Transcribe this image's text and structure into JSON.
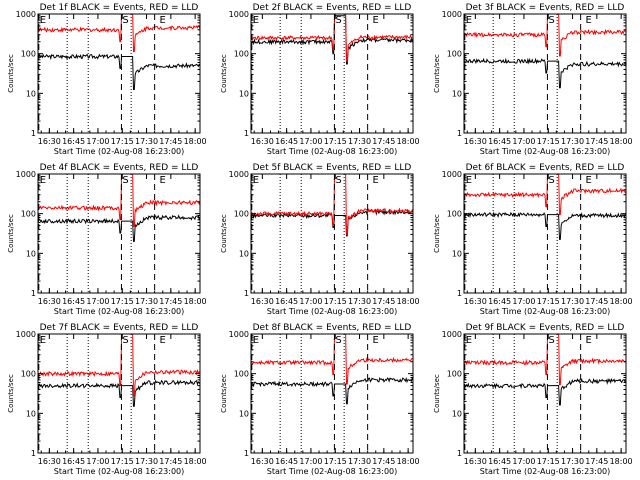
{
  "chart_data": [
    {
      "type": "line",
      "title": "Det 1f BLACK = Events, RED = LLD",
      "xlabel": "Start Time (02-Aug-08 16:23:00)",
      "ylabel": "Counts/sec",
      "yscale": "log",
      "ylim": [
        1,
        1000
      ],
      "xticks": [
        "16:30",
        "16:45",
        "17:00",
        "17:15",
        "17:30",
        "17:45",
        "18:00"
      ],
      "yticks": [
        "1",
        "10",
        "100",
        "1000"
      ],
      "markers": [
        "E",
        "S",
        "E"
      ],
      "series": [
        {
          "name": "Events",
          "color": "#000000",
          "base": [
            85,
            50
          ],
          "peak": 85
        },
        {
          "name": "LLD",
          "color": "#ff0000",
          "base": [
            400,
            450
          ],
          "peak": 1200
        }
      ]
    },
    {
      "type": "line",
      "title": "Det 2f BLACK = Events, RED = LLD",
      "xlabel": "Start Time (02-Aug-08 16:23:00)",
      "ylabel": "Counts/sec",
      "yscale": "log",
      "ylim": [
        1,
        1000
      ],
      "xticks": [
        "16:30",
        "16:45",
        "17:00",
        "17:15",
        "17:30",
        "17:45",
        "18:00"
      ],
      "yticks": [
        "1",
        "10",
        "100",
        "1000"
      ],
      "markers": [
        "E",
        "S",
        "E"
      ],
      "series": [
        {
          "name": "Events",
          "color": "#000000",
          "base": [
            200,
            220
          ],
          "peak": 900
        },
        {
          "name": "LLD",
          "color": "#ff0000",
          "base": [
            250,
            260
          ],
          "peak": 1100
        }
      ]
    },
    {
      "type": "line",
      "title": "Det 3f BLACK = Events, RED = LLD",
      "xlabel": "Start Time (02-Aug-08 16:23:00)",
      "ylabel": "Counts/sec",
      "yscale": "log",
      "ylim": [
        1,
        1000
      ],
      "xticks": [
        "16:30",
        "16:45",
        "17:00",
        "17:15",
        "17:30",
        "17:45",
        "18:00"
      ],
      "yticks": [
        "1",
        "10",
        "100",
        "1000"
      ],
      "markers": [
        "E",
        "S",
        "E"
      ],
      "series": [
        {
          "name": "Events",
          "color": "#000000",
          "base": [
            65,
            55
          ],
          "peak": 65
        },
        {
          "name": "LLD",
          "color": "#ff0000",
          "base": [
            300,
            350
          ],
          "peak": 1200
        }
      ]
    },
    {
      "type": "line",
      "title": "Det 4f BLACK = Events, RED = LLD",
      "xlabel": "Start Time (02-Aug-08 16:23:00)",
      "ylabel": "Counts/sec",
      "yscale": "log",
      "ylim": [
        1,
        1000
      ],
      "xticks": [
        "16:30",
        "16:45",
        "17:00",
        "17:15",
        "17:30",
        "17:45",
        "18:00"
      ],
      "yticks": [
        "1",
        "10",
        "100",
        "1000"
      ],
      "markers": [
        "E",
        "S",
        "E"
      ],
      "series": [
        {
          "name": "Events",
          "color": "#000000",
          "base": [
            65,
            80
          ],
          "peak": 65
        },
        {
          "name": "LLD",
          "color": "#ff0000",
          "base": [
            140,
            190
          ],
          "peak": 1200
        }
      ]
    },
    {
      "type": "line",
      "title": "Det 5f BLACK = Events, RED = LLD",
      "xlabel": "Start Time (02-Aug-08 16:23:00)",
      "ylabel": "Counts/sec",
      "yscale": "log",
      "ylim": [
        1,
        1000
      ],
      "xticks": [
        "16:30",
        "16:45",
        "17:00",
        "17:15",
        "17:30",
        "17:45",
        "18:00"
      ],
      "yticks": [
        "1",
        "10",
        "100",
        "1000"
      ],
      "markers": [
        "E",
        "S",
        "E"
      ],
      "series": [
        {
          "name": "Events",
          "color": "#000000",
          "base": [
            90,
            110
          ],
          "peak": 90
        },
        {
          "name": "LLD",
          "color": "#ff0000",
          "base": [
            100,
            120
          ],
          "peak": 1200
        }
      ]
    },
    {
      "type": "line",
      "title": "Det 6f BLACK = Events, RED = LLD",
      "xlabel": "Start Time (02-Aug-08 16:23:00)",
      "ylabel": "Counts/sec",
      "yscale": "log",
      "ylim": [
        1,
        1000
      ],
      "xticks": [
        "16:30",
        "16:45",
        "17:00",
        "17:15",
        "17:30",
        "17:45",
        "18:00"
      ],
      "yticks": [
        "1",
        "10",
        "100",
        "1000"
      ],
      "markers": [
        "E",
        "S",
        "E"
      ],
      "series": [
        {
          "name": "Events",
          "color": "#000000",
          "base": [
            95,
            90
          ],
          "peak": 95
        },
        {
          "name": "LLD",
          "color": "#ff0000",
          "base": [
            300,
            380
          ],
          "peak": 1200
        }
      ]
    },
    {
      "type": "line",
      "title": "Det 7f BLACK = Events, RED = LLD",
      "xlabel": "Start Time (02-Aug-08 16:23:00)",
      "ylabel": "Counts/sec",
      "yscale": "log",
      "ylim": [
        1,
        1000
      ],
      "xticks": [
        "16:30",
        "16:45",
        "17:00",
        "17:15",
        "17:30",
        "17:45",
        "18:00"
      ],
      "yticks": [
        "1",
        "10",
        "100",
        "1000"
      ],
      "markers": [
        "E",
        "S",
        "E"
      ],
      "series": [
        {
          "name": "Events",
          "color": "#000000",
          "base": [
            50,
            60
          ],
          "peak": 50
        },
        {
          "name": "LLD",
          "color": "#ff0000",
          "base": [
            100,
            110
          ],
          "peak": 1200
        }
      ]
    },
    {
      "type": "line",
      "title": "Det 8f BLACK = Events, RED = LLD",
      "xlabel": "Start Time (02-Aug-08 16:23:00)",
      "ylabel": "Counts/sec",
      "yscale": "log",
      "ylim": [
        1,
        1000
      ],
      "xticks": [
        "16:30",
        "16:45",
        "17:00",
        "17:15",
        "17:30",
        "17:45",
        "18:00"
      ],
      "yticks": [
        "1",
        "10",
        "100",
        "1000"
      ],
      "markers": [
        "E",
        "S",
        "E"
      ],
      "series": [
        {
          "name": "Events",
          "color": "#000000",
          "base": [
            55,
            70
          ],
          "peak": 55
        },
        {
          "name": "LLD",
          "color": "#ff0000",
          "base": [
            190,
            220
          ],
          "peak": 1200
        }
      ]
    },
    {
      "type": "line",
      "title": "Det 9f BLACK = Events, RED = LLD",
      "xlabel": "Start Time (02-Aug-08 16:23:00)",
      "ylabel": "Counts/sec",
      "yscale": "log",
      "ylim": [
        1,
        1000
      ],
      "xticks": [
        "16:30",
        "16:45",
        "17:00",
        "17:15",
        "17:30",
        "17:45",
        "18:00"
      ],
      "yticks": [
        "1",
        "10",
        "100",
        "1000"
      ],
      "markers": [
        "E",
        "S",
        "E"
      ],
      "series": [
        {
          "name": "Events",
          "color": "#000000",
          "base": [
            50,
            65
          ],
          "peak": 50
        },
        {
          "name": "LLD",
          "color": "#ff0000",
          "base": [
            190,
            210
          ],
          "peak": 1200
        }
      ]
    }
  ]
}
